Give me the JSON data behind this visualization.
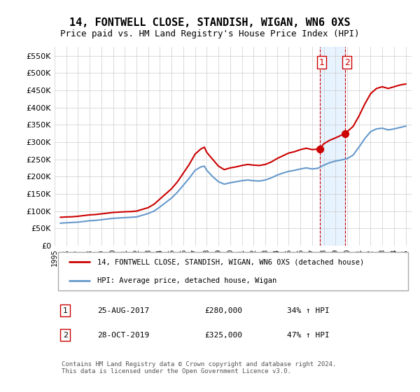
{
  "title": "14, FONTWELL CLOSE, STANDISH, WIGAN, WN6 0XS",
  "subtitle": "Price paid vs. HM Land Registry's House Price Index (HPI)",
  "title_fontsize": 11,
  "subtitle_fontsize": 9,
  "ylim": [
    0,
    575000
  ],
  "yticks": [
    0,
    50000,
    100000,
    150000,
    200000,
    250000,
    300000,
    350000,
    400000,
    450000,
    500000,
    550000
  ],
  "ytick_labels": [
    "£0",
    "£50K",
    "£100K",
    "£150K",
    "£200K",
    "£250K",
    "£300K",
    "£350K",
    "£400K",
    "£450K",
    "£500K",
    "£550K"
  ],
  "xlim_start": 1995.0,
  "xlim_end": 2025.5,
  "xticks": [
    1995,
    1996,
    1997,
    1998,
    1999,
    2000,
    2001,
    2002,
    2003,
    2004,
    2005,
    2006,
    2007,
    2008,
    2009,
    2010,
    2011,
    2012,
    2013,
    2014,
    2015,
    2016,
    2017,
    2018,
    2019,
    2020,
    2021,
    2022,
    2023,
    2024,
    2025
  ],
  "red_line_color": "#cc0000",
  "blue_line_color": "#6699cc",
  "marker_color": "#cc0000",
  "sale1_x": 2017.65,
  "sale1_y": 280000,
  "sale1_label": "1",
  "sale2_x": 2019.83,
  "sale2_y": 325000,
  "sale2_label": "2",
  "vline1_x": 2017.65,
  "vline2_x": 2019.83,
  "legend_line1": "14, FONTWELL CLOSE, STANDISH, WIGAN, WN6 0XS (detached house)",
  "legend_line2": "HPI: Average price, detached house, Wigan",
  "table_row1": [
    "1",
    "25-AUG-2017",
    "£280,000",
    "34% ↑ HPI"
  ],
  "table_row2": [
    "2",
    "28-OCT-2019",
    "£325,000",
    "47% ↑ HPI"
  ],
  "footer": "Contains HM Land Registry data © Crown copyright and database right 2024.\nThis data is licensed under the Open Government Licence v3.0.",
  "background_color": "#ffffff",
  "grid_color": "#cccccc",
  "highlight_fill": "#ddeeff",
  "red_data_x": [
    1995.5,
    1996.0,
    1996.5,
    1997.0,
    1997.5,
    1998.0,
    1998.5,
    1999.0,
    1999.5,
    2000.0,
    2000.5,
    2001.0,
    2001.5,
    2002.0,
    2002.5,
    2003.0,
    2003.5,
    2004.0,
    2004.5,
    2005.0,
    2005.5,
    2006.0,
    2006.5,
    2007.0,
    2007.5,
    2007.8,
    2008.0,
    2008.5,
    2009.0,
    2009.5,
    2010.0,
    2010.5,
    2011.0,
    2011.5,
    2012.0,
    2012.5,
    2013.0,
    2013.5,
    2014.0,
    2014.5,
    2015.0,
    2015.5,
    2016.0,
    2016.5,
    2017.0,
    2017.65,
    2018.0,
    2018.5,
    2019.0,
    2019.83,
    2020.0,
    2020.5,
    2021.0,
    2021.5,
    2022.0,
    2022.5,
    2023.0,
    2023.5,
    2024.0,
    2024.5,
    2025.0
  ],
  "red_data_y": [
    82000,
    83000,
    83500,
    85000,
    87000,
    89000,
    90000,
    92000,
    94000,
    96000,
    97000,
    98000,
    98500,
    100000,
    105000,
    110000,
    120000,
    135000,
    150000,
    165000,
    185000,
    210000,
    235000,
    265000,
    280000,
    285000,
    270000,
    250000,
    230000,
    220000,
    225000,
    228000,
    232000,
    235000,
    233000,
    232000,
    235000,
    242000,
    252000,
    260000,
    268000,
    272000,
    278000,
    282000,
    278000,
    280000,
    295000,
    305000,
    312000,
    325000,
    330000,
    345000,
    375000,
    410000,
    440000,
    455000,
    460000,
    455000,
    460000,
    465000,
    468000
  ],
  "blue_data_x": [
    1995.5,
    1996.0,
    1996.5,
    1997.0,
    1997.5,
    1998.0,
    1998.5,
    1999.0,
    1999.5,
    2000.0,
    2000.5,
    2001.0,
    2001.5,
    2002.0,
    2002.5,
    2003.0,
    2003.5,
    2004.0,
    2004.5,
    2005.0,
    2005.5,
    2006.0,
    2006.5,
    2007.0,
    2007.5,
    2007.8,
    2008.0,
    2008.5,
    2009.0,
    2009.5,
    2010.0,
    2010.5,
    2011.0,
    2011.5,
    2012.0,
    2012.5,
    2013.0,
    2013.5,
    2014.0,
    2014.5,
    2015.0,
    2015.5,
    2016.0,
    2016.5,
    2017.0,
    2017.5,
    2018.0,
    2018.5,
    2019.0,
    2019.5,
    2020.0,
    2020.5,
    2021.0,
    2021.5,
    2022.0,
    2022.5,
    2023.0,
    2023.5,
    2024.0,
    2024.5,
    2025.0
  ],
  "blue_data_y": [
    65000,
    66000,
    67000,
    68000,
    70000,
    72000,
    73000,
    75000,
    77000,
    79000,
    80000,
    81000,
    82000,
    83000,
    88000,
    93000,
    100000,
    112000,
    125000,
    138000,
    155000,
    175000,
    195000,
    218000,
    228000,
    230000,
    218000,
    200000,
    185000,
    178000,
    182000,
    185000,
    188000,
    190000,
    188000,
    187000,
    190000,
    196000,
    204000,
    210000,
    215000,
    218000,
    222000,
    225000,
    222000,
    224000,
    233000,
    240000,
    245000,
    248000,
    252000,
    262000,
    285000,
    310000,
    330000,
    338000,
    340000,
    335000,
    338000,
    342000,
    346000
  ]
}
